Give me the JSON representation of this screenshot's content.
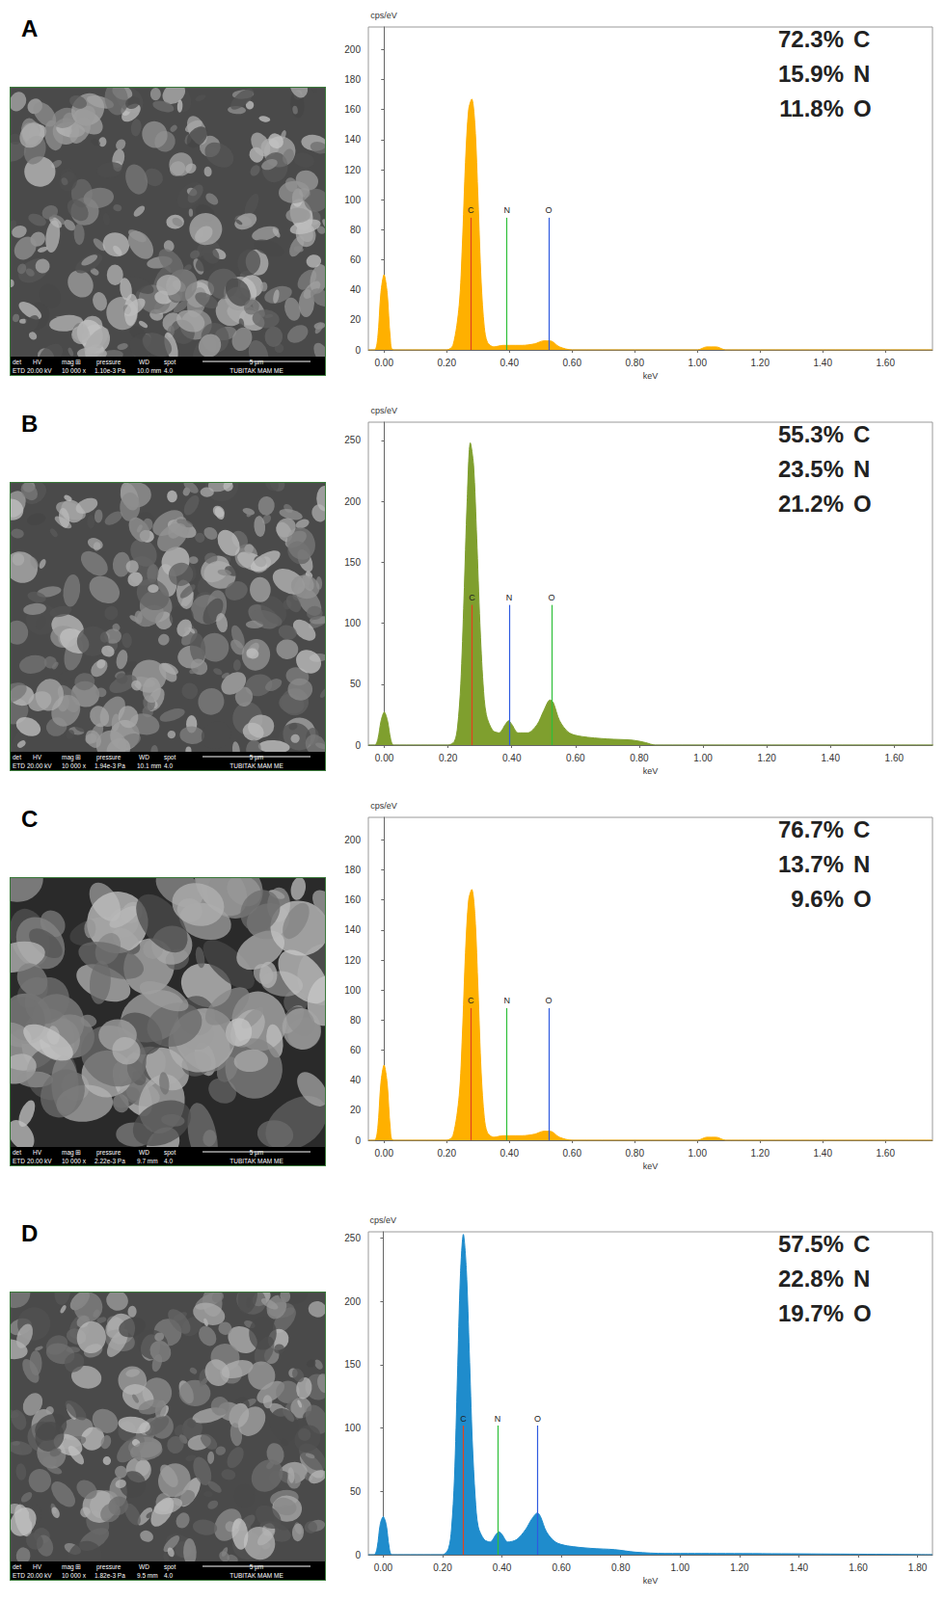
{
  "chart_data": [
    {
      "panel": "A",
      "type": "area",
      "x_label": "keV",
      "y_label": "cps/eV",
      "color": "#ffb000",
      "grid": false,
      "x": [
        -0.05,
        -0.03,
        -0.02,
        -0.01,
        0.0,
        0.01,
        0.02,
        0.03,
        0.2,
        0.22,
        0.24,
        0.25,
        0.26,
        0.27,
        0.28,
        0.29,
        0.3,
        0.31,
        0.32,
        0.33,
        0.35,
        0.38,
        0.4,
        0.44,
        0.48,
        0.51,
        0.53,
        0.56,
        0.6,
        1.0,
        1.03,
        1.06,
        1.09,
        1.75
      ],
      "values": [
        0,
        0,
        8,
        38,
        50,
        38,
        8,
        0,
        0,
        3,
        30,
        70,
        125,
        160,
        167,
        150,
        100,
        45,
        15,
        5,
        2,
        3,
        3,
        3,
        4,
        6,
        6,
        2,
        0,
        0,
        2,
        2,
        0,
        0
      ],
      "xlim": [
        -0.05,
        1.75
      ],
      "xticks": [
        {
          "value": 0,
          "label": "0.00"
        },
        {
          "value": 0.2,
          "label": "0.20"
        },
        {
          "value": 0.4,
          "label": "0.40"
        },
        {
          "value": 0.6,
          "label": "0.60"
        },
        {
          "value": 0.8,
          "label": "0.80"
        },
        {
          "value": 1,
          "label": "1.00"
        },
        {
          "value": 1.2,
          "label": "1.20"
        },
        {
          "value": 1.4,
          "label": "1.40"
        },
        {
          "value": 1.6,
          "label": "1.60"
        }
      ],
      "ylim": [
        0,
        215
      ],
      "yticks": [
        0,
        20,
        40,
        60,
        80,
        100,
        120,
        140,
        160,
        180,
        200
      ],
      "markers": [
        {
          "label": "C",
          "x": 0.277,
          "height": 88,
          "color": "#e2431e"
        },
        {
          "label": "N",
          "x": 0.392,
          "height": 88,
          "color": "#2fbf3a"
        },
        {
          "label": "O",
          "x": 0.525,
          "height": 88,
          "color": "#2f5ae0"
        }
      ],
      "composition": [
        {
          "element": "C",
          "value": 72.3,
          "label": "72.3%"
        },
        {
          "element": "N",
          "value": 15.9,
          "label": "15.9%"
        },
        {
          "element": "O",
          "value": 11.8,
          "label": "11.8%"
        }
      ]
    },
    {
      "panel": "B",
      "type": "area",
      "x_label": "keV",
      "y_label": "cps/eV",
      "color": "#7f9f2e",
      "grid": false,
      "x": [
        -0.05,
        -0.03,
        -0.02,
        -0.01,
        0.0,
        0.01,
        0.02,
        0.03,
        0.2,
        0.22,
        0.23,
        0.24,
        0.25,
        0.26,
        0.27,
        0.28,
        0.29,
        0.3,
        0.31,
        0.32,
        0.34,
        0.36,
        0.38,
        0.39,
        0.4,
        0.42,
        0.45,
        0.48,
        0.5,
        0.52,
        0.53,
        0.55,
        0.58,
        0.62,
        0.7,
        0.78,
        0.82,
        0.85,
        1.75
      ],
      "values": [
        0,
        0,
        5,
        20,
        27,
        20,
        5,
        0,
        0,
        3,
        15,
        50,
        120,
        200,
        248,
        230,
        170,
        100,
        50,
        25,
        12,
        10,
        17,
        20,
        17,
        10,
        10,
        17,
        28,
        37,
        35,
        20,
        10,
        7,
        5,
        4,
        2,
        0,
        0
      ],
      "xlim": [
        -0.05,
        1.72
      ],
      "xticks": [
        {
          "value": 0,
          "label": "0.00"
        },
        {
          "value": 0.2,
          "label": "0.20"
        },
        {
          "value": 0.4,
          "label": "0.40"
        },
        {
          "value": 0.6,
          "label": "0.60"
        },
        {
          "value": 0.8,
          "label": "0.80"
        },
        {
          "value": 1,
          "label": "1.00"
        },
        {
          "value": 1.2,
          "label": "1.20"
        },
        {
          "value": 1.4,
          "label": "1.40"
        },
        {
          "value": 1.6,
          "label": "1.60"
        }
      ],
      "ylim": [
        0,
        265
      ],
      "yticks": [
        0,
        50,
        100,
        150,
        200,
        250
      ],
      "markers": [
        {
          "label": "C",
          "x": 0.275,
          "height": 115,
          "color": "#e2431e"
        },
        {
          "label": "N",
          "x": 0.392,
          "height": 115,
          "color": "#2f5ae0"
        },
        {
          "label": "O",
          "x": 0.525,
          "height": 115,
          "color": "#2fbf3a"
        }
      ],
      "composition": [
        {
          "element": "C",
          "value": 55.3,
          "label": "55.3%"
        },
        {
          "element": "N",
          "value": 23.5,
          "label": "23.5%"
        },
        {
          "element": "O",
          "value": 21.2,
          "label": "21.2%"
        }
      ]
    },
    {
      "panel": "C",
      "type": "area",
      "x_label": "keV",
      "y_label": "cps/eV",
      "color": "#ffb000",
      "grid": false,
      "x": [
        -0.05,
        -0.03,
        -0.02,
        -0.01,
        0.0,
        0.01,
        0.02,
        0.03,
        0.2,
        0.22,
        0.24,
        0.25,
        0.26,
        0.27,
        0.28,
        0.29,
        0.3,
        0.31,
        0.32,
        0.33,
        0.35,
        0.38,
        0.4,
        0.44,
        0.48,
        0.51,
        0.53,
        0.56,
        0.6,
        1.0,
        1.03,
        1.06,
        1.09,
        1.75
      ],
      "values": [
        0,
        0,
        8,
        38,
        50,
        38,
        8,
        0,
        0,
        3,
        30,
        70,
        125,
        160,
        167,
        150,
        100,
        45,
        15,
        5,
        2,
        3,
        3,
        3,
        4,
        6,
        6,
        2,
        0,
        0,
        2,
        2,
        0,
        0
      ],
      "xlim": [
        -0.05,
        1.75
      ],
      "xticks": [
        {
          "value": 0,
          "label": "0.00"
        },
        {
          "value": 0.2,
          "label": "0.20"
        },
        {
          "value": 0.4,
          "label": "0.40"
        },
        {
          "value": 0.6,
          "label": "0.60"
        },
        {
          "value": 0.8,
          "label": "0.80"
        },
        {
          "value": 1,
          "label": "1.00"
        },
        {
          "value": 1.2,
          "label": "1.20"
        },
        {
          "value": 1.4,
          "label": "1.40"
        },
        {
          "value": 1.6,
          "label": "1.60"
        }
      ],
      "ylim": [
        0,
        215
      ],
      "yticks": [
        0,
        20,
        40,
        60,
        80,
        100,
        120,
        140,
        160,
        180,
        200
      ],
      "markers": [
        {
          "label": "C",
          "x": 0.277,
          "height": 88,
          "color": "#e2431e"
        },
        {
          "label": "N",
          "x": 0.392,
          "height": 88,
          "color": "#2fbf3a"
        },
        {
          "label": "O",
          "x": 0.525,
          "height": 88,
          "color": "#2f5ae0"
        }
      ],
      "composition": [
        {
          "element": "C",
          "value": 76.7,
          "label": "76.7%"
        },
        {
          "element": "N",
          "value": 13.7,
          "label": "13.7%"
        },
        {
          "element": "O",
          "value": 9.6,
          "label": "9.6%"
        }
      ]
    },
    {
      "panel": "D",
      "type": "area",
      "x_label": "keV",
      "y_label": "cps/eV",
      "color": "#1f8ccc",
      "grid": false,
      "x": [
        -0.05,
        -0.03,
        -0.02,
        -0.01,
        0.0,
        0.01,
        0.02,
        0.03,
        0.2,
        0.22,
        0.23,
        0.24,
        0.25,
        0.26,
        0.27,
        0.28,
        0.29,
        0.3,
        0.31,
        0.32,
        0.34,
        0.36,
        0.38,
        0.39,
        0.4,
        0.42,
        0.45,
        0.48,
        0.5,
        0.52,
        0.53,
        0.55,
        0.58,
        0.62,
        0.7,
        0.78,
        0.85,
        0.95,
        1.05,
        1.85
      ],
      "values": [
        0,
        0,
        6,
        24,
        30,
        24,
        6,
        0,
        0,
        5,
        20,
        60,
        140,
        220,
        253,
        225,
        160,
        90,
        45,
        22,
        12,
        10,
        16,
        18,
        16,
        10,
        12,
        20,
        28,
        33,
        30,
        18,
        10,
        7,
        5,
        4,
        2,
        1,
        1,
        0
      ],
      "xlim": [
        -0.05,
        1.85
      ],
      "xticks": [
        {
          "value": 0,
          "label": "0.00"
        },
        {
          "value": 0.2,
          "label": "0.20"
        },
        {
          "value": 0.4,
          "label": "0.40"
        },
        {
          "value": 0.6,
          "label": "0.60"
        },
        {
          "value": 0.8,
          "label": "0.80"
        },
        {
          "value": 1,
          "label": "1.00"
        },
        {
          "value": 1.2,
          "label": "1.20"
        },
        {
          "value": 1.4,
          "label": "1.40"
        },
        {
          "value": 1.6,
          "label": "1.60"
        },
        {
          "value": 1.8,
          "label": "1.80"
        }
      ],
      "ylim": [
        0,
        255
      ],
      "yticks": [
        0,
        50,
        100,
        150,
        200,
        250
      ],
      "markers": [
        {
          "label": "C",
          "x": 0.27,
          "height": 102,
          "color": "#e2431e"
        },
        {
          "label": "N",
          "x": 0.385,
          "height": 102,
          "color": "#2fbf3a"
        },
        {
          "label": "O",
          "x": 0.52,
          "height": 102,
          "color": "#2f5ae0"
        }
      ],
      "composition": [
        {
          "element": "C",
          "value": 57.5,
          "label": "57.5%"
        },
        {
          "element": "N",
          "value": 22.8,
          "label": "22.8%"
        },
        {
          "element": "O",
          "value": 19.7,
          "label": "19.7%"
        }
      ]
    }
  ],
  "sem_images": [
    {
      "panel": "A",
      "headers": [
        "det",
        "HV",
        "mag ⊞",
        "pressure",
        "WD",
        "spot"
      ],
      "values": [
        "ETD",
        "20.00 kV",
        "10 000 x",
        "1.10e-3 Pa",
        "10.0 mm",
        "4.0"
      ],
      "scale": "5 µm",
      "lab": "TUBITAK MAM ME"
    },
    {
      "panel": "B",
      "headers": [
        "det",
        "HV",
        "mag ⊞",
        "pressure",
        "WD",
        "spot"
      ],
      "values": [
        "ETD",
        "20.00 kV",
        "10 000 x",
        "1.94e-3 Pa",
        "10.1 mm",
        "4.0"
      ],
      "scale": "5 µm",
      "lab": "TUBITAK MAM ME"
    },
    {
      "panel": "C",
      "headers": [
        "det",
        "HV",
        "mag ⊞",
        "pressure",
        "WD",
        "spot"
      ],
      "values": [
        "ETD",
        "20.00 kV",
        "10 000 x",
        "2.22e-3 Pa",
        "9.7 mm",
        "4.0"
      ],
      "scale": "5 µm",
      "lab": "TUBITAK MAM ME"
    },
    {
      "panel": "D",
      "headers": [
        "det",
        "HV",
        "mag ⊞",
        "pressure",
        "WD",
        "spot"
      ],
      "values": [
        "ETD",
        "20.00 kV",
        "10 000 x",
        "1.82e-3 Pa",
        "9.5 mm",
        "4.0"
      ],
      "scale": "5 µm",
      "lab": "TUBITAK MAM ME"
    }
  ]
}
